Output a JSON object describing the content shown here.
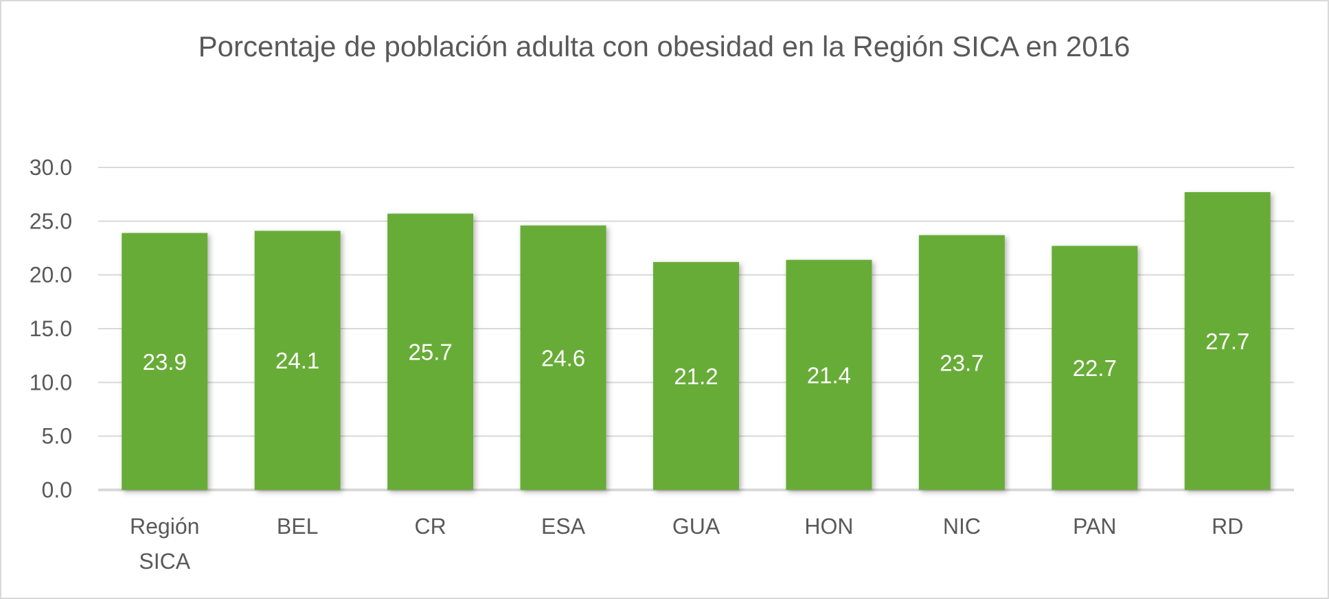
{
  "chart_data": {
    "type": "bar",
    "title": "Porcentaje de población adulta con obesidad en la Región SICA en 2016",
    "xlabel": "",
    "ylabel": "",
    "categories": [
      [
        "Región",
        "SICA"
      ],
      [
        "BEL"
      ],
      [
        "CR"
      ],
      [
        "ESA"
      ],
      [
        "GUA"
      ],
      [
        "HON"
      ],
      [
        "NIC"
      ],
      [
        "PAN"
      ],
      [
        "RD"
      ]
    ],
    "values": [
      23.9,
      24.1,
      25.7,
      24.6,
      21.2,
      21.4,
      23.7,
      22.7,
      27.7
    ],
    "data_labels": [
      "23.9",
      "24.1",
      "25.7",
      "24.6",
      "21.2",
      "21.4",
      "23.7",
      "22.7",
      "27.7"
    ],
    "ylim": [
      0,
      30
    ],
    "yticks": [
      "0.0",
      "5.0",
      "10.0",
      "15.0",
      "20.0",
      "25.0",
      "30.0"
    ],
    "ytick_values": [
      0,
      5,
      10,
      15,
      20,
      25,
      30
    ],
    "grid": true,
    "legend": "none",
    "colors": {
      "bar": "#67ac38",
      "grid": "#d9d9d9",
      "text": "#595959",
      "label": "#ffffff"
    }
  }
}
